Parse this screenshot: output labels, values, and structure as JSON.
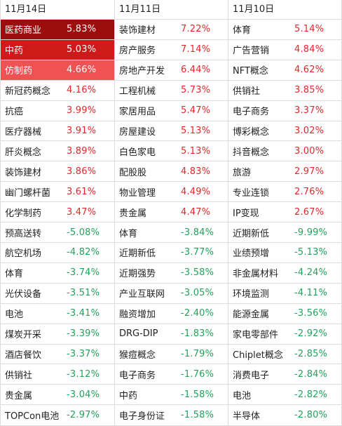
{
  "columns": [
    {
      "date": "11月14日",
      "rows": [
        {
          "name": "医药商业",
          "pct": "5.83%",
          "dir": "up",
          "hl": "hl1"
        },
        {
          "name": "中药",
          "pct": "5.03%",
          "dir": "up",
          "hl": "hl2"
        },
        {
          "name": "仿制药",
          "pct": "4.66%",
          "dir": "up",
          "hl": "hl3"
        },
        {
          "name": "新冠药概念",
          "pct": "4.16%",
          "dir": "up",
          "hl": ""
        },
        {
          "name": "抗癌",
          "pct": "3.99%",
          "dir": "up",
          "hl": ""
        },
        {
          "name": "医疗器械",
          "pct": "3.91%",
          "dir": "up",
          "hl": ""
        },
        {
          "name": "肝炎概念",
          "pct": "3.89%",
          "dir": "up",
          "hl": ""
        },
        {
          "name": "装饰建材",
          "pct": "3.86%",
          "dir": "up",
          "hl": ""
        },
        {
          "name": "幽门螺杆菌",
          "pct": "3.61%",
          "dir": "up",
          "hl": ""
        },
        {
          "name": "化学制药",
          "pct": "3.47%",
          "dir": "up",
          "hl": ""
        },
        {
          "name": "预高送转",
          "pct": "-5.08%",
          "dir": "down",
          "hl": ""
        },
        {
          "name": "航空机场",
          "pct": "-4.82%",
          "dir": "down",
          "hl": ""
        },
        {
          "name": "体育",
          "pct": "-3.74%",
          "dir": "down",
          "hl": ""
        },
        {
          "name": "光伏设备",
          "pct": "-3.51%",
          "dir": "down",
          "hl": ""
        },
        {
          "name": "电池",
          "pct": "-3.41%",
          "dir": "down",
          "hl": ""
        },
        {
          "name": "煤炭开采",
          "pct": "-3.39%",
          "dir": "down",
          "hl": ""
        },
        {
          "name": "酒店餐饮",
          "pct": "-3.37%",
          "dir": "down",
          "hl": ""
        },
        {
          "name": "供销社",
          "pct": "-3.12%",
          "dir": "down",
          "hl": ""
        },
        {
          "name": "贵金属",
          "pct": "-3.04%",
          "dir": "down",
          "hl": ""
        },
        {
          "name": "TOPCon电池",
          "pct": "-2.97%",
          "dir": "down",
          "hl": ""
        }
      ]
    },
    {
      "date": "11月11日",
      "rows": [
        {
          "name": "装饰建材",
          "pct": "7.22%",
          "dir": "up",
          "hl": ""
        },
        {
          "name": "房产服务",
          "pct": "7.14%",
          "dir": "up",
          "hl": ""
        },
        {
          "name": "房地产开发",
          "pct": "6.44%",
          "dir": "up",
          "hl": ""
        },
        {
          "name": "工程机械",
          "pct": "5.73%",
          "dir": "up",
          "hl": ""
        },
        {
          "name": "家居用品",
          "pct": "5.47%",
          "dir": "up",
          "hl": ""
        },
        {
          "name": "房屋建设",
          "pct": "5.13%",
          "dir": "up",
          "hl": ""
        },
        {
          "name": "白色家电",
          "pct": "5.13%",
          "dir": "up",
          "hl": ""
        },
        {
          "name": "配股股",
          "pct": "4.83%",
          "dir": "up",
          "hl": ""
        },
        {
          "name": "物业管理",
          "pct": "4.49%",
          "dir": "up",
          "hl": ""
        },
        {
          "name": "贵金属",
          "pct": "4.47%",
          "dir": "up",
          "hl": ""
        },
        {
          "name": "体育",
          "pct": "-3.84%",
          "dir": "down",
          "hl": ""
        },
        {
          "name": "近期新低",
          "pct": "-3.77%",
          "dir": "down",
          "hl": ""
        },
        {
          "name": "近期强势",
          "pct": "-3.58%",
          "dir": "down",
          "hl": ""
        },
        {
          "name": "产业互联网",
          "pct": "-3.05%",
          "dir": "down",
          "hl": ""
        },
        {
          "name": "融资增加",
          "pct": "-2.40%",
          "dir": "down",
          "hl": ""
        },
        {
          "name": "DRG-DIP",
          "pct": "-1.83%",
          "dir": "down",
          "hl": ""
        },
        {
          "name": "猴痘概念",
          "pct": "-1.79%",
          "dir": "down",
          "hl": ""
        },
        {
          "name": "电子商务",
          "pct": "-1.76%",
          "dir": "down",
          "hl": ""
        },
        {
          "name": "中药",
          "pct": "-1.58%",
          "dir": "down",
          "hl": ""
        },
        {
          "name": "电子身份证",
          "pct": "-1.58%",
          "dir": "down",
          "hl": ""
        }
      ]
    },
    {
      "date": "11月10日",
      "rows": [
        {
          "name": "体育",
          "pct": "5.14%",
          "dir": "up",
          "hl": ""
        },
        {
          "name": "广告营销",
          "pct": "4.84%",
          "dir": "up",
          "hl": ""
        },
        {
          "name": "NFT概念",
          "pct": "4.62%",
          "dir": "up",
          "hl": ""
        },
        {
          "name": "供销社",
          "pct": "3.85%",
          "dir": "up",
          "hl": ""
        },
        {
          "name": "电子商务",
          "pct": "3.37%",
          "dir": "up",
          "hl": ""
        },
        {
          "name": "博彩概念",
          "pct": "3.02%",
          "dir": "up",
          "hl": ""
        },
        {
          "name": "抖音概念",
          "pct": "3.00%",
          "dir": "up",
          "hl": ""
        },
        {
          "name": "旅游",
          "pct": "2.97%",
          "dir": "up",
          "hl": ""
        },
        {
          "name": "专业连锁",
          "pct": "2.76%",
          "dir": "up",
          "hl": ""
        },
        {
          "name": "IP变现",
          "pct": "2.67%",
          "dir": "up",
          "hl": ""
        },
        {
          "name": "近期新低",
          "pct": "-9.99%",
          "dir": "down",
          "hl": ""
        },
        {
          "name": "业绩预增",
          "pct": "-5.13%",
          "dir": "down",
          "hl": ""
        },
        {
          "name": "非金属材料",
          "pct": "-4.24%",
          "dir": "down",
          "hl": ""
        },
        {
          "name": "环境监测",
          "pct": "-4.11%",
          "dir": "down",
          "hl": ""
        },
        {
          "name": "能源金属",
          "pct": "-3.56%",
          "dir": "down",
          "hl": ""
        },
        {
          "name": "家电零部件",
          "pct": "-2.92%",
          "dir": "down",
          "hl": ""
        },
        {
          "name": "Chiplet概念",
          "pct": "-2.85%",
          "dir": "down",
          "hl": ""
        },
        {
          "name": "消费电子",
          "pct": "-2.84%",
          "dir": "down",
          "hl": ""
        },
        {
          "name": "电池",
          "pct": "-2.82%",
          "dir": "down",
          "hl": ""
        },
        {
          "name": "半导体",
          "pct": "-2.80%",
          "dir": "down",
          "hl": ""
        }
      ]
    }
  ]
}
